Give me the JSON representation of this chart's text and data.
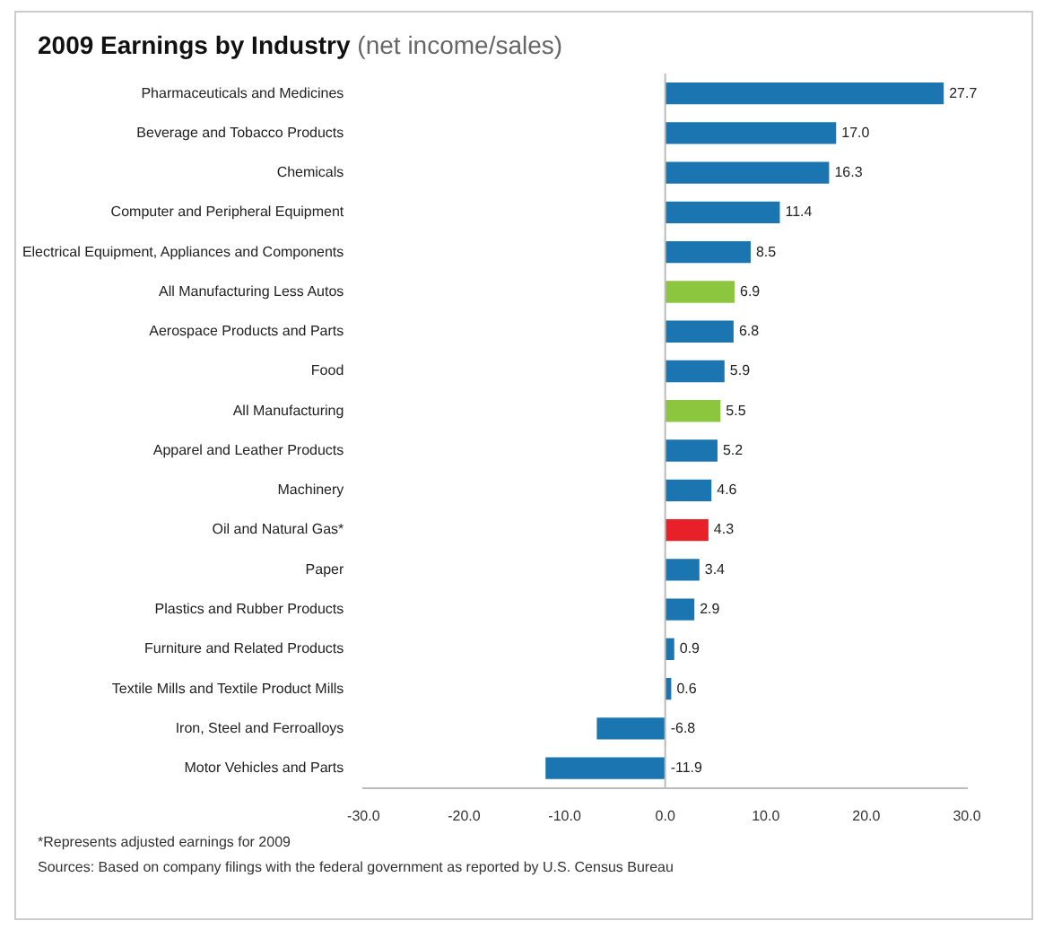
{
  "chart_data": {
    "type": "bar",
    "orientation": "horizontal",
    "title": "2009 Earnings by Industry",
    "subtitle": "(net income/sales)",
    "categories": [
      "Pharmaceuticals and Medicines",
      "Beverage and Tobacco Products",
      "Chemicals",
      "Computer and Peripheral Equipment",
      "Electrical Equipment, Appliances and Components",
      "All Manufacturing Less Autos",
      "Aerospace Products and Parts",
      "Food",
      "All Manufacturing",
      "Apparel and Leather Products",
      "Machinery",
      "Oil and Natural Gas*",
      "Paper",
      "Plastics and Rubber Products",
      "Furniture and Related Products",
      "Textile Mills and Textile Product Mills",
      "Iron, Steel and Ferroalloys",
      "Motor Vehicles and Parts"
    ],
    "values": [
      27.7,
      17.0,
      16.3,
      11.4,
      8.5,
      6.9,
      6.8,
      5.9,
      5.5,
      5.2,
      4.6,
      4.3,
      3.4,
      2.9,
      0.9,
      0.6,
      -6.8,
      -11.9
    ],
    "colors": [
      "#1a75b0",
      "#1a75b0",
      "#1a75b0",
      "#1a75b0",
      "#1a75b0",
      "#8cc63f",
      "#1a75b0",
      "#1a75b0",
      "#8cc63f",
      "#1a75b0",
      "#1a75b0",
      "#e8202a",
      "#1a75b0",
      "#1a75b0",
      "#1a75b0",
      "#1a75b0",
      "#1a75b0",
      "#1a75b0"
    ],
    "xlim": [
      -30,
      30
    ],
    "xticks": [
      {
        "value": -30,
        "label": "-30.0"
      },
      {
        "value": -20,
        "label": "-20.0"
      },
      {
        "value": -10,
        "label": "-10.0"
      },
      {
        "value": 0,
        "label": "0.0"
      },
      {
        "value": 10,
        "label": "10.0"
      },
      {
        "value": 20,
        "label": "20.0"
      },
      {
        "value": 30,
        "label": "30.0"
      }
    ],
    "value_labels": [
      "27.7",
      "17.0",
      "16.3",
      "11.4",
      "8.5",
      "6.9",
      "6.8",
      "5.9",
      "5.5",
      "5.2",
      "4.6",
      "4.3",
      "3.4",
      "2.9",
      "0.9",
      "0.6",
      "-6.8",
      "-11.9"
    ],
    "grid": false,
    "legend": false,
    "ref_lines": [
      {
        "axis": "x",
        "value": 0,
        "color": "#bbbbbb"
      }
    ],
    "annotations": [
      "*Represents adjusted earnings for 2009",
      "Sources: Based on company filings with the federal government as reported by U.S. Census Bureau"
    ]
  }
}
